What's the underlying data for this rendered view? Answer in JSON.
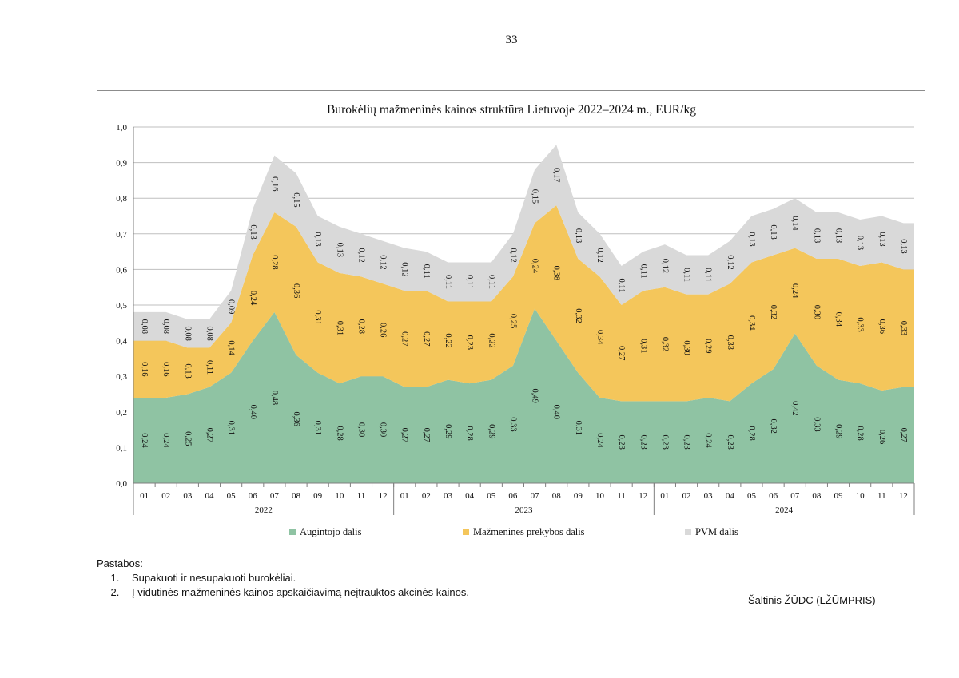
{
  "page": {
    "number": "33"
  },
  "colors": {
    "grower": "#8fc3a3",
    "retail": "#f4c65b",
    "vat": "#d9d9d9",
    "grid": "#bfbfbf",
    "axis": "#7f7f7f",
    "text": "#111111"
  },
  "chart_data": {
    "type": "area",
    "stacked": true,
    "title": "Burokėlių mažmeninės kainos struktūra Lietuvoje 2022–2024 m., EUR/kg",
    "xlabel": "",
    "ylabel": "",
    "ylim": [
      0,
      1.0
    ],
    "yticks": [
      "0,0",
      "0,1",
      "0,2",
      "0,3",
      "0,4",
      "0,5",
      "0,6",
      "0,7",
      "0,8",
      "0,9",
      "1,0"
    ],
    "grid": true,
    "legend_position": "bottom",
    "categories": [
      "01",
      "02",
      "03",
      "04",
      "05",
      "06",
      "07",
      "08",
      "09",
      "10",
      "11",
      "12",
      "01",
      "02",
      "03",
      "04",
      "05",
      "06",
      "07",
      "08",
      "09",
      "10",
      "11",
      "12",
      "01",
      "02",
      "03",
      "04",
      "05",
      "06",
      "07",
      "08",
      "09",
      "10",
      "11",
      "12"
    ],
    "year_groups": [
      {
        "label": "2022",
        "start": 0,
        "count": 12
      },
      {
        "label": "2023",
        "start": 12,
        "count": 12
      },
      {
        "label": "2024",
        "start": 24,
        "count": 12
      }
    ],
    "series": [
      {
        "name": "Augintojo dalis",
        "color_key": "grower",
        "values": [
          0.24,
          0.24,
          0.25,
          0.27,
          0.31,
          0.4,
          0.48,
          0.36,
          0.31,
          0.28,
          0.3,
          0.3,
          0.27,
          0.27,
          0.29,
          0.28,
          0.29,
          0.33,
          0.49,
          0.4,
          0.31,
          0.24,
          0.23,
          0.23,
          0.23,
          0.23,
          0.24,
          0.23,
          0.28,
          0.32,
          0.42,
          0.33,
          0.29,
          0.28,
          0.26,
          0.27
        ],
        "labels": [
          "0,24",
          "0,24",
          "0,25",
          "0,27",
          "0,31",
          "0,40",
          "0,48",
          "0,36",
          "0,31",
          "0,28",
          "0,30",
          "0,30",
          "0,27",
          "0,27",
          "0,29",
          "0,28",
          "0,29",
          "0,33",
          "0,49",
          "0,40",
          "0,31",
          "0,24",
          "0,23",
          "0,23",
          "0,23",
          "0,23",
          "0,24",
          "0,23",
          "0,28",
          "0,32",
          "0,42",
          "0,33",
          "0,29",
          "0,28",
          "0,26",
          "0,27"
        ]
      },
      {
        "name": "Mažmenines prekybos dalis",
        "color_key": "retail",
        "values": [
          0.16,
          0.16,
          0.13,
          0.11,
          0.14,
          0.24,
          0.28,
          0.36,
          0.31,
          0.31,
          0.28,
          0.26,
          0.27,
          0.27,
          0.22,
          0.23,
          0.22,
          0.25,
          0.24,
          0.38,
          0.32,
          0.34,
          0.27,
          0.31,
          0.32,
          0.3,
          0.29,
          0.33,
          0.34,
          0.32,
          0.24,
          0.3,
          0.34,
          0.33,
          0.36,
          0.33
        ],
        "labels": [
          "0,16",
          "0,16",
          "0,13",
          "0,11",
          "0,14",
          "0,24",
          "0,28",
          "0,36",
          "0,31",
          "0,31",
          "0,28",
          "0,26",
          "0,27",
          "0,27",
          "0,22",
          "0,23",
          "0,22",
          "0,25",
          "0,24",
          "0,38",
          "0,32",
          "0,34",
          "0,27",
          "0,31",
          "0,32",
          "0,30",
          "0,29",
          "0,33",
          "0,34",
          "0,32",
          "0,24",
          "0,30",
          "0,34",
          "0,33",
          "0,36",
          "0,33"
        ]
      },
      {
        "name": "PVM dalis",
        "color_key": "vat",
        "values": [
          0.08,
          0.08,
          0.08,
          0.08,
          0.09,
          0.13,
          0.16,
          0.15,
          0.13,
          0.13,
          0.12,
          0.12,
          0.12,
          0.11,
          0.11,
          0.11,
          0.11,
          0.12,
          0.15,
          0.17,
          0.13,
          0.12,
          0.11,
          0.11,
          0.12,
          0.11,
          0.11,
          0.12,
          0.13,
          0.13,
          0.14,
          0.13,
          0.13,
          0.13,
          0.13,
          0.13
        ],
        "labels": [
          "0,08",
          "0,08",
          "0,08",
          "0,08",
          "0,09",
          "0,13",
          "0,16",
          "0,15",
          "0,13",
          "0,13",
          "0,12",
          "0,12",
          "0,12",
          "0,11",
          "0,11",
          "0,11",
          "0,11",
          "0,12",
          "0,15",
          "0,17",
          "0,13",
          "0,12",
          "0,11",
          "0,11",
          "0,12",
          "0,11",
          "0,11",
          "0,12",
          "0,13",
          "0,13",
          "0,14",
          "0,13",
          "0,13",
          "0,13",
          "0,13",
          "0,13"
        ]
      }
    ]
  },
  "notes": {
    "heading": "Pastabos:",
    "items": [
      "Supakuoti ir nesupakuoti burokėliai.",
      "Į vidutinės mažmeninės kainos apskaičiavimą neįtrauktos akcinės kainos."
    ]
  },
  "source": "Šaltinis ŽŪDC (LŽŪMPRIS)"
}
